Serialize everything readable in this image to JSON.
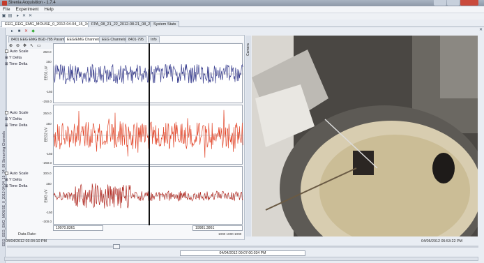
{
  "window": {
    "title": "Sirenia Acquisition - 1.7.4"
  },
  "menu": [
    "File",
    "Experiment",
    "Help"
  ],
  "tabs": [
    "EEG_EEG_EMG_MOUSE_0_2012-04-04_15_34_09",
    "FPA_08_21_22_2012-08-21_08_22_39",
    "System Stats"
  ],
  "inner_tabs": [
    "8401 EEG EMG 8GD-785 Params",
    "EEG/EMG Channels",
    "EEG Channels",
    "8401-795",
    "Info"
  ],
  "side_label": "EEG_EEG_EMG_MOUSE_0_2012-04-04_15_34_09 Streaming Channels",
  "channels": [
    {
      "name": "EEG1 uV",
      "ymax": "250.0",
      "ymid": "0.0",
      "ymin": "-250.0",
      "t1": "150",
      "t2": "-150",
      "color": "#3a3f8f",
      "auto_scale": "Auto Scale",
      "y_delta": "Y Delta",
      "time_delta": "Time Delta"
    },
    {
      "name": "EEG2 uV",
      "ymax": "250.0",
      "ymid": "0.0",
      "ymin": "-250.0",
      "t1": "150",
      "t2": "-150",
      "color": "#e2472b",
      "auto_scale": "Auto Scale",
      "y_delta": "Y Delta",
      "time_delta": "Time Delta"
    },
    {
      "name": "EMG uV",
      "ymax": "300.0",
      "ymid": "0.0",
      "ymin": "-300.0",
      "t1": "150",
      "t2": "-150",
      "color": "#b02a22",
      "auto_scale": "Auto Scale",
      "y_delta": "Y Delta",
      "time_delta": "Time Delta"
    }
  ],
  "x_start": "19970.8361",
  "x_end": "19981.3861",
  "rate_values": "1000 1000 1000",
  "data_rate_label": "Data Rate:",
  "camera_label": "Camera",
  "timeline": {
    "start": "04/04/2012 03:34:10 PM",
    "end": "04/05/2012 05:53:22 PM",
    "current": "04/04/2012 09:07:00.034 PM"
  }
}
